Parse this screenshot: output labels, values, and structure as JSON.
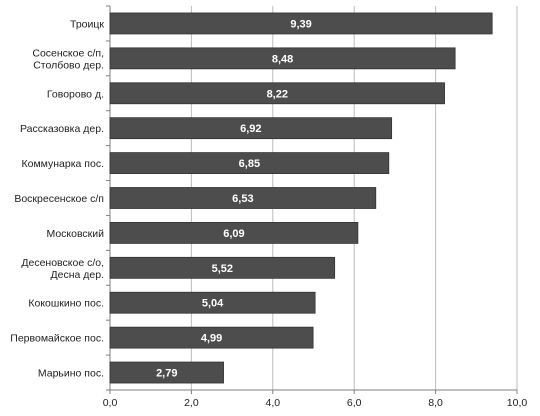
{
  "chart_data": {
    "type": "bar",
    "orientation": "horizontal",
    "categories": [
      [
        "Троицк"
      ],
      [
        "Сосенское с/п,",
        "Столбово дер."
      ],
      [
        "Говорово д."
      ],
      [
        "Рассказовка дер."
      ],
      [
        "Коммунарка пос."
      ],
      [
        "Воскресенское с/п"
      ],
      [
        "Московский"
      ],
      [
        "Десеновское с/о,",
        "Десна дер."
      ],
      [
        "Кокошкино пос."
      ],
      [
        "Первомайское пос."
      ],
      [
        "Марьино пос."
      ]
    ],
    "values": [
      9.39,
      8.48,
      8.22,
      6.92,
      6.85,
      6.53,
      6.09,
      5.52,
      5.04,
      4.99,
      2.79
    ],
    "value_labels": [
      "9,39",
      "8,48",
      "8,22",
      "6,92",
      "6,85",
      "6,53",
      "6,09",
      "5,52",
      "5,04",
      "4,99",
      "2,79"
    ],
    "xlim": [
      0,
      10
    ],
    "x_ticks": [
      0,
      2,
      4,
      6,
      8,
      10
    ],
    "x_tick_labels": [
      "0,0",
      "2,0",
      "4,0",
      "6,0",
      "8,0",
      "10,0"
    ],
    "grid": true,
    "legend": false,
    "colors": {
      "bar": "#4d4d4d",
      "bar_stroke": "#333333",
      "grid": "#bdbdbd",
      "axis": "#7f7f7f",
      "value_label": "#ffffff"
    }
  }
}
